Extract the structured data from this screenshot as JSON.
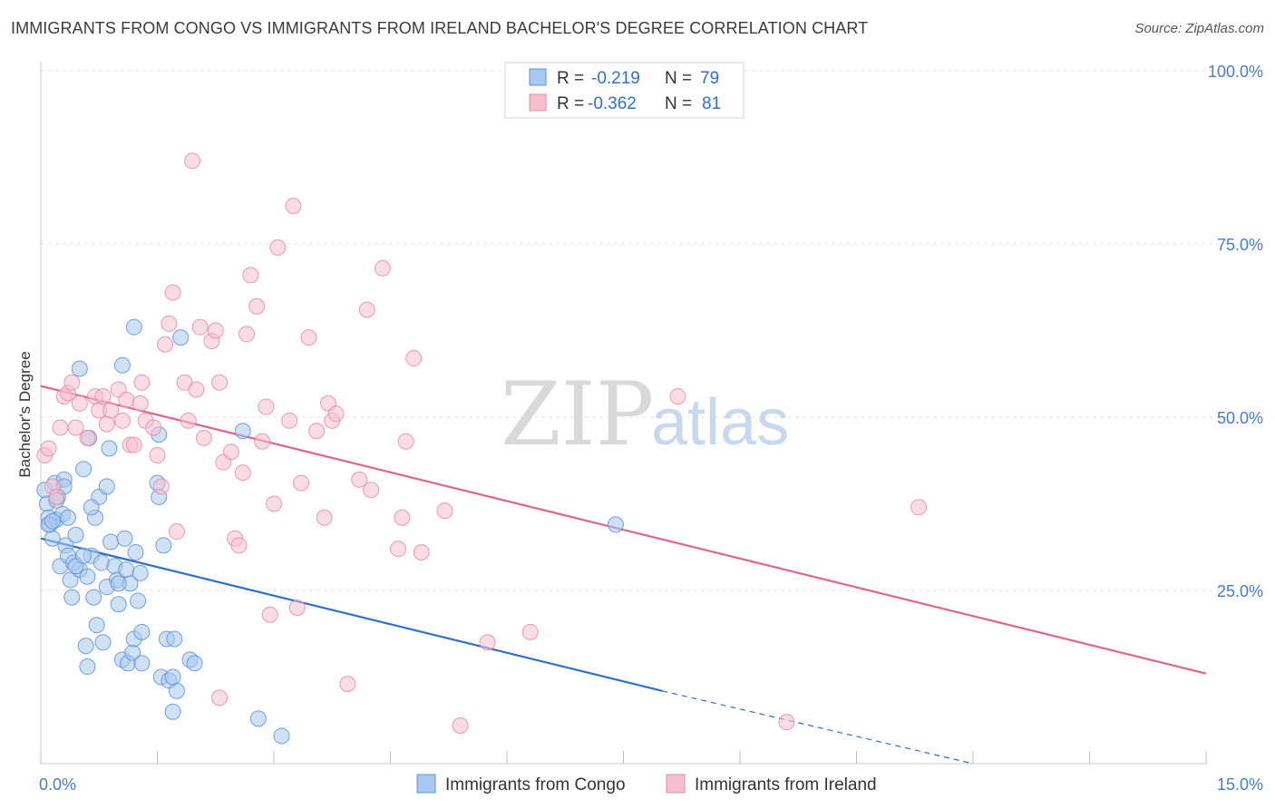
{
  "title": "IMMIGRANTS FROM CONGO VS IMMIGRANTS FROM IRELAND BACHELOR'S DEGREE CORRELATION CHART",
  "source": "Source: ZipAtlas.com",
  "watermark": {
    "zip": "ZIP",
    "atlas": "atlas"
  },
  "legend_top": [
    {
      "r_label": "R =",
      "r_value": "-0.219",
      "n_label": "N =",
      "n_value": "79"
    },
    {
      "r_label": "R =",
      "r_value": "-0.362",
      "n_label": "N =",
      "n_value": "81"
    }
  ],
  "colors": {
    "congo_fill": "#a9c8ef",
    "congo_stroke": "#5b93d9",
    "congo_line": "#2e6fd0",
    "ireland_fill": "#f6bfd0",
    "ireland_stroke": "#e98aa8",
    "ireland_line": "#e0648f"
  },
  "chart_data": {
    "type": "scatter",
    "title": "IMMIGRANTS FROM CONGO VS IMMIGRANTS FROM IRELAND BACHELOR'S DEGREE CORRELATION CHART",
    "xlabel": "",
    "ylabel": "Bachelor's Degree",
    "xlim": [
      0,
      15
    ],
    "ylim": [
      0,
      100
    ],
    "x_ticks": [
      "0.0%",
      "15.0%"
    ],
    "y_ticks": [
      "25.0%",
      "50.0%",
      "75.0%",
      "100.0%"
    ],
    "legend_placement": "top-center",
    "grid": true,
    "series": [
      {
        "name": "Immigrants from Congo",
        "points": [
          [
            0.05,
            39.5
          ],
          [
            0.08,
            37.5
          ],
          [
            0.1,
            35.5
          ],
          [
            0.12,
            34.5
          ],
          [
            0.15,
            32.5
          ],
          [
            0.18,
            40.5
          ],
          [
            0.2,
            35.2
          ],
          [
            0.22,
            38.5
          ],
          [
            0.25,
            28.5
          ],
          [
            0.28,
            36
          ],
          [
            0.3,
            41
          ],
          [
            0.32,
            31.5
          ],
          [
            0.35,
            30
          ],
          [
            0.38,
            26.5
          ],
          [
            0.4,
            24
          ],
          [
            0.42,
            29
          ],
          [
            0.45,
            33
          ],
          [
            0.5,
            28
          ],
          [
            0.55,
            42.5
          ],
          [
            0.58,
            17
          ],
          [
            0.6,
            27
          ],
          [
            0.62,
            47
          ],
          [
            0.65,
            30
          ],
          [
            0.68,
            24
          ],
          [
            0.7,
            35.5
          ],
          [
            0.72,
            20
          ],
          [
            0.75,
            38.5
          ],
          [
            0.78,
            29
          ],
          [
            0.8,
            17.5
          ],
          [
            0.85,
            40
          ],
          [
            0.88,
            45.5
          ],
          [
            0.9,
            32
          ],
          [
            0.95,
            28.5
          ],
          [
            0.98,
            26.5
          ],
          [
            1.0,
            23
          ],
          [
            1.05,
            15
          ],
          [
            1.08,
            32.5
          ],
          [
            1.1,
            28
          ],
          [
            1.12,
            14.5
          ],
          [
            1.15,
            26
          ],
          [
            1.18,
            16
          ],
          [
            1.2,
            18
          ],
          [
            1.22,
            30.5
          ],
          [
            1.25,
            23.5
          ],
          [
            1.28,
            27.5
          ],
          [
            1.3,
            14.5
          ],
          [
            1.2,
            63
          ],
          [
            1.5,
            40.5
          ],
          [
            1.52,
            47.5
          ],
          [
            1.55,
            12.5
          ],
          [
            1.58,
            31.5
          ],
          [
            1.62,
            18
          ],
          [
            1.65,
            12
          ],
          [
            1.7,
            7.5
          ],
          [
            1.72,
            18
          ],
          [
            1.75,
            10.5
          ],
          [
            1.52,
            38.5
          ],
          [
            1.8,
            61.5
          ],
          [
            1.05,
            57.5
          ],
          [
            0.5,
            57
          ],
          [
            1.92,
            15
          ],
          [
            1.98,
            14.5
          ],
          [
            2.6,
            48
          ],
          [
            2.8,
            6.5
          ],
          [
            3.1,
            4
          ],
          [
            7.4,
            34.5
          ],
          [
            0.1,
            34.5
          ],
          [
            0.15,
            35
          ],
          [
            0.2,
            38
          ],
          [
            0.3,
            40
          ],
          [
            0.35,
            35.5
          ],
          [
            0.45,
            28.5
          ],
          [
            0.55,
            30
          ],
          [
            0.65,
            37
          ],
          [
            0.85,
            25.5
          ],
          [
            1.0,
            26
          ],
          [
            1.3,
            19
          ],
          [
            1.7,
            12.5
          ],
          [
            0.6,
            14
          ]
        ],
        "trend": {
          "x": [
            0.0,
            8.0
          ],
          "y": [
            32.5,
            10.5
          ],
          "dashed_to": [
            12.0,
            0.0
          ]
        }
      },
      {
        "name": "Immigrants from Ireland",
        "points": [
          [
            0.05,
            44.5
          ],
          [
            0.1,
            45.5
          ],
          [
            0.15,
            40
          ],
          [
            0.2,
            38.5
          ],
          [
            0.25,
            48.5
          ],
          [
            0.3,
            53
          ],
          [
            0.35,
            53.5
          ],
          [
            0.4,
            55
          ],
          [
            0.45,
            48.5
          ],
          [
            0.5,
            52
          ],
          [
            0.6,
            47
          ],
          [
            0.7,
            53
          ],
          [
            0.75,
            51
          ],
          [
            0.8,
            53
          ],
          [
            0.85,
            49
          ],
          [
            0.9,
            51
          ],
          [
            1.0,
            54
          ],
          [
            1.05,
            49.5
          ],
          [
            1.1,
            52.5
          ],
          [
            1.15,
            46
          ],
          [
            1.2,
            46
          ],
          [
            1.28,
            52
          ],
          [
            1.3,
            55
          ],
          [
            1.35,
            49.5
          ],
          [
            1.45,
            48.5
          ],
          [
            1.5,
            44.5
          ],
          [
            1.55,
            40
          ],
          [
            1.6,
            60.5
          ],
          [
            1.65,
            63.5
          ],
          [
            1.7,
            68
          ],
          [
            1.75,
            33.5
          ],
          [
            1.85,
            55
          ],
          [
            1.9,
            49.5
          ],
          [
            1.95,
            87
          ],
          [
            2.0,
            54
          ],
          [
            2.05,
            63
          ],
          [
            2.1,
            47
          ],
          [
            2.2,
            61
          ],
          [
            2.25,
            62.5
          ],
          [
            2.3,
            55
          ],
          [
            2.35,
            43.5
          ],
          [
            2.45,
            45
          ],
          [
            2.5,
            32.5
          ],
          [
            2.55,
            31.5
          ],
          [
            2.6,
            42
          ],
          [
            2.65,
            62
          ],
          [
            2.7,
            70.5
          ],
          [
            2.78,
            66
          ],
          [
            2.85,
            46.5
          ],
          [
            2.9,
            51.5
          ],
          [
            2.95,
            21.5
          ],
          [
            3.0,
            37.5
          ],
          [
            3.05,
            74.5
          ],
          [
            3.2,
            49.5
          ],
          [
            3.25,
            80.5
          ],
          [
            3.3,
            22.5
          ],
          [
            3.35,
            40.5
          ],
          [
            3.45,
            61.5
          ],
          [
            3.55,
            48
          ],
          [
            3.65,
            35.5
          ],
          [
            3.7,
            52
          ],
          [
            3.75,
            49.5
          ],
          [
            3.8,
            50.5
          ],
          [
            3.95,
            11.5
          ],
          [
            4.1,
            41
          ],
          [
            4.2,
            65.5
          ],
          [
            4.25,
            39.5
          ],
          [
            4.4,
            71.5
          ],
          [
            4.6,
            31
          ],
          [
            4.65,
            35.5
          ],
          [
            4.7,
            46.5
          ],
          [
            4.8,
            58.5
          ],
          [
            4.9,
            30.5
          ],
          [
            5.2,
            36.5
          ],
          [
            5.4,
            5.5
          ],
          [
            5.75,
            17.5
          ],
          [
            6.3,
            19
          ],
          [
            8.2,
            53
          ],
          [
            9.6,
            6
          ],
          [
            11.3,
            37
          ],
          [
            2.3,
            9.5
          ]
        ],
        "trend": {
          "x": [
            0.0,
            15.0
          ],
          "y": [
            54.5,
            13.0
          ]
        }
      }
    ]
  },
  "bottom_legend": [
    "Immigrants from Congo",
    "Immigrants from Ireland"
  ]
}
